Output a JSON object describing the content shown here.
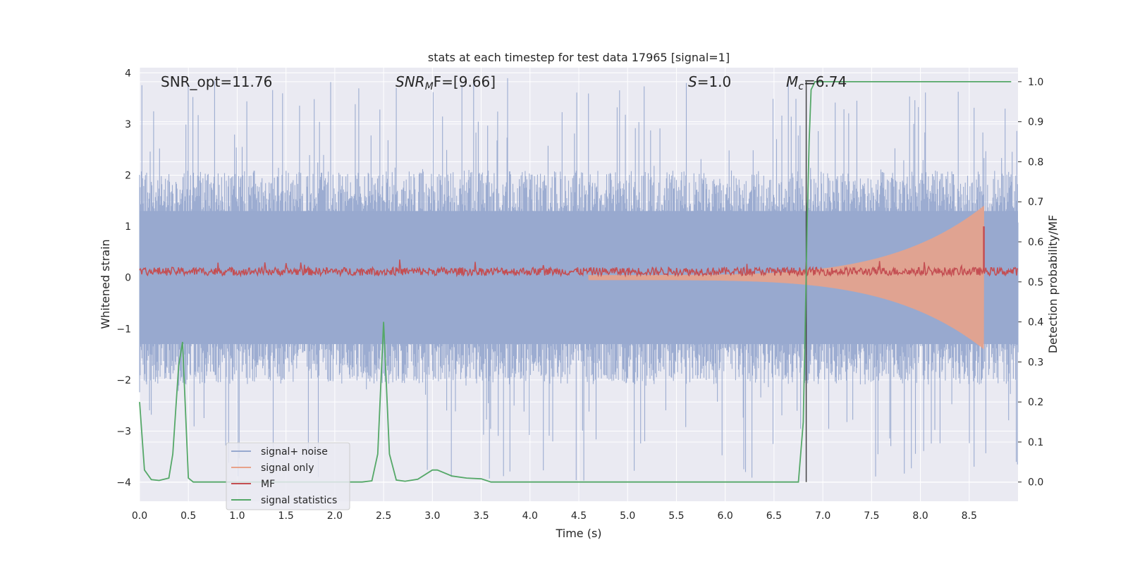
{
  "chart_data": {
    "type": "line",
    "title": "stats at each timestep for test data 17965 [signal=1]",
    "xlabel": "Time (s)",
    "ylabel_left": "Whitened strain",
    "ylabel_right": "Detection probability/MF",
    "xlim": [
      0,
      9.0
    ],
    "ylim_left": [
      -4.37,
      4.1
    ],
    "ylim_right": [
      -0.048,
      1.035
    ],
    "xticks": [
      "0.0",
      "0.5",
      "1.0",
      "1.5",
      "2.0",
      "2.5",
      "3.0",
      "3.5",
      "4.0",
      "4.5",
      "5.0",
      "5.5",
      "6.0",
      "6.5",
      "7.0",
      "7.5",
      "8.0",
      "8.5"
    ],
    "yticks_left": [
      "−4",
      "−3",
      "−2",
      "−1",
      "0",
      "1",
      "2",
      "3",
      "4"
    ],
    "yticks_right": [
      "0.0",
      "0.1",
      "0.2",
      "0.3",
      "0.4",
      "0.5",
      "0.6",
      "0.7",
      "0.8",
      "0.9",
      "1.0"
    ],
    "grid": true,
    "legend_position": "lower-left",
    "annotations": {
      "snr_opt": "SNR_opt=11.76",
      "snr_mf_base": "SNR",
      "snr_mf_sub": "M",
      "snr_mf_rest": "F=[9.66]",
      "s_sym": "S",
      "s_rest": "=1.0",
      "mc_sym": "M",
      "mc_sub": "c",
      "mc_rest": "=6.74"
    },
    "vertical_marker_x": 6.83,
    "series": [
      {
        "name": "signal+ noise",
        "color": "#98a9cf",
        "axis": "left",
        "envelope": {
          "upper_typical": 1.9,
          "upper_peak": 3.9,
          "lower_typical": -1.9,
          "lower_peak": -4.0
        }
      },
      {
        "name": "signal only",
        "color": "#e8a28a",
        "axis": "left",
        "chirp": {
          "start_x": 4.6,
          "merger_x": 8.65,
          "peak_amplitude": 1.4,
          "base_amplitude": 0.05
        }
      },
      {
        "name": "MF",
        "color": "#c44e52",
        "axis": "left",
        "baseline": 0.12,
        "noise_amplitude": 0.08,
        "spike": {
          "x": 8.65,
          "value": 1.0
        }
      },
      {
        "name": "signal statistics",
        "color": "#55a868",
        "axis": "right",
        "x": [
          0.0,
          0.05,
          0.12,
          0.2,
          0.3,
          0.34,
          0.4,
          0.44,
          0.5,
          0.55,
          0.7,
          1.0,
          1.5,
          2.0,
          2.1,
          2.28,
          2.38,
          2.44,
          2.5,
          2.56,
          2.63,
          2.72,
          2.85,
          3.0,
          3.05,
          3.2,
          3.35,
          3.5,
          3.6,
          3.75,
          4.0,
          5.0,
          6.0,
          6.5,
          6.75,
          6.8,
          6.82,
          6.84,
          6.86,
          6.88,
          6.92,
          7.0,
          7.5,
          8.0,
          8.5,
          8.93
        ],
        "y": [
          0.2,
          0.03,
          0.006,
          0.004,
          0.01,
          0.07,
          0.29,
          0.35,
          0.01,
          0.0,
          0.0,
          0.0,
          0.0,
          0.0,
          0.0,
          0.0,
          0.003,
          0.07,
          0.4,
          0.07,
          0.005,
          0.002,
          0.007,
          0.03,
          0.03,
          0.015,
          0.01,
          0.008,
          0.0,
          0.0,
          0.0,
          0.0,
          0.0,
          0.0,
          0.0,
          0.15,
          0.4,
          0.65,
          0.85,
          0.98,
          1.0,
          1.0,
          1.0,
          1.0,
          1.0,
          1.0
        ]
      }
    ]
  }
}
